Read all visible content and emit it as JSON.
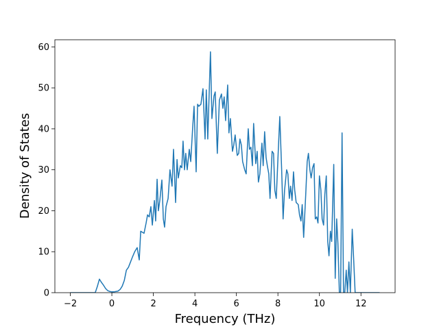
{
  "chart_data": {
    "type": "line",
    "xlabel": "Frequency (THz)",
    "ylabel": "Density of States",
    "x": [
      -2,
      -1.5,
      -1,
      -0.8,
      -0.7,
      -0.6,
      -0.5,
      -0.4,
      -0.3,
      -0.2,
      -0.1,
      0,
      0.1,
      0.2,
      0.3,
      0.4,
      0.5,
      0.6,
      0.7,
      0.8,
      0.9,
      1.0,
      1.1,
      1.22,
      1.32,
      1.39,
      1.55,
      1.65,
      1.72,
      1.8,
      1.88,
      1.95,
      2.05,
      2.11,
      2.18,
      2.24,
      2.31,
      2.41,
      2.48,
      2.54,
      2.61,
      2.71,
      2.8,
      2.9,
      2.97,
      3.07,
      3.14,
      3.2,
      3.3,
      3.37,
      3.43,
      3.5,
      3.56,
      3.63,
      3.73,
      3.8,
      3.89,
      3.96,
      4.06,
      4.13,
      4.19,
      4.29,
      4.39,
      4.49,
      4.55,
      4.62,
      4.75,
      4.82,
      4.92,
      4.98,
      5.08,
      5.18,
      5.28,
      5.35,
      5.41,
      5.48,
      5.58,
      5.64,
      5.71,
      5.81,
      5.87,
      5.94,
      6.04,
      6.11,
      6.17,
      6.24,
      6.3,
      6.4,
      6.47,
      6.57,
      6.63,
      6.7,
      6.77,
      6.83,
      6.93,
      7.0,
      7.06,
      7.13,
      7.23,
      7.29,
      7.36,
      7.43,
      7.49,
      7.56,
      7.62,
      7.72,
      7.79,
      7.85,
      7.92,
      8.02,
      8.09,
      8.18,
      8.25,
      8.32,
      8.42,
      8.48,
      8.55,
      8.61,
      8.68,
      8.75,
      8.81,
      8.88,
      8.98,
      9.04,
      9.11,
      9.17,
      9.24,
      9.34,
      9.41,
      9.47,
      9.54,
      9.6,
      9.67,
      9.74,
      9.8,
      9.87,
      9.93,
      10.0,
      10.07,
      10.13,
      10.2,
      10.26,
      10.33,
      10.4,
      10.46,
      10.53,
      10.59,
      10.69,
      10.76,
      10.83,
      10.89,
      10.96,
      11.02,
      11.09,
      11.16,
      11.22,
      11.29,
      11.35,
      11.42,
      11.49,
      11.58,
      11.65,
      11.72,
      12.3,
      12.9
    ],
    "series": [
      {
        "color": "#1f77b4",
        "values": [
          0,
          0,
          0,
          0,
          1.5,
          3.3,
          2.5,
          1.8,
          1.0,
          0.5,
          0.3,
          0.2,
          0.2,
          0.3,
          0.4,
          0.8,
          1.6,
          3,
          5.5,
          6.2,
          7.5,
          8.8,
          10,
          11,
          8,
          15,
          14.5,
          17,
          19,
          18.5,
          21,
          16.5,
          22.5,
          17.5,
          27.7,
          20,
          22.5,
          27.5,
          18,
          16,
          21,
          23,
          30,
          26,
          35,
          22,
          32.5,
          28,
          31,
          30.5,
          37,
          30,
          34,
          30,
          35,
          32,
          40,
          45.5,
          29.5,
          46,
          45.5,
          46,
          49.8,
          37.5,
          49.5,
          37.5,
          58.8,
          42.5,
          48,
          49,
          34,
          47,
          48.5,
          45,
          47.8,
          42,
          50.7,
          39,
          42.5,
          34.5,
          36,
          38.5,
          33.5,
          34,
          37.5,
          36,
          32,
          30,
          29,
          40,
          35,
          35.5,
          31,
          41.3,
          31.5,
          34.5,
          27,
          29,
          36.5,
          31,
          39.3,
          33,
          31,
          29,
          23,
          34.5,
          34,
          25,
          23,
          35,
          43,
          30,
          18,
          25,
          30,
          29,
          23,
          26,
          22.5,
          29.5,
          25,
          22,
          21.5,
          19,
          17.5,
          21.5,
          13.5,
          24,
          32,
          34,
          30,
          28,
          30.5,
          31.5,
          18,
          18.5,
          17,
          28.5,
          25,
          18,
          16.5,
          24,
          28.5,
          12.5,
          9,
          15,
          12.5,
          31.3,
          3.5,
          18,
          12,
          0,
          0,
          39,
          0,
          0,
          5.5,
          0,
          7.5,
          0,
          15.5,
          8,
          0,
          0,
          0
        ]
      }
    ],
    "xlim": [
      -2.745,
      13.645
    ],
    "ylim": [
      0,
      61.74
    ],
    "xticks": [
      {
        "value": -2,
        "label": "−2"
      },
      0,
      2,
      4,
      6,
      8,
      10,
      12
    ],
    "yticks": [
      0,
      10,
      20,
      30,
      40,
      50,
      60
    ]
  }
}
